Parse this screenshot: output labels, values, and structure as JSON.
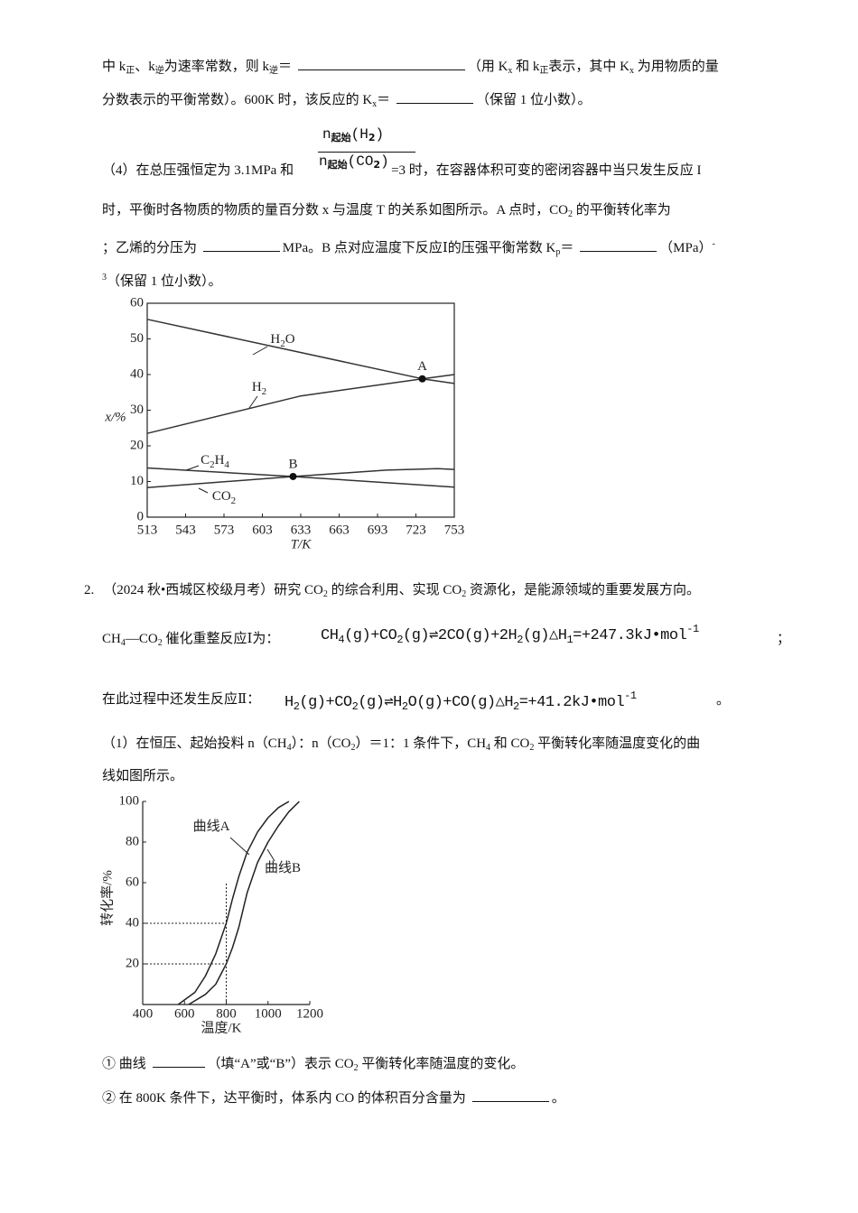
{
  "text_lines": [
    [
      "中 k",
      "正",
      "、k",
      "逆",
      "为速率常数，则 k",
      "逆",
      "＝ ",
      "（用 K",
      "x",
      " 和 k",
      "正",
      "表示，其中 K",
      "x",
      " 为用物质的量"
    ],
    [
      "分数表示的平衡常数）。600K 时，该反应的 K",
      "x",
      "＝ ",
      "（保留 1 位小数）。"
    ],
    [
      "（4）在总压强恒定为 3.1MPa 和",
      "=3 时，在容器体积可变的密闭容器中当只发生反应 I"
    ],
    [
      "时，平衡时各物质的物质的量百分数 x 与温度 T 的关系如图所示。A 点时，CO",
      "2",
      " 的平衡转化率为"
    ],
    [
      "；乙烯的分压为 ",
      "MPa。B 点对应温度下反应Ⅰ的压强平衡常数 K",
      "p",
      "＝ ",
      "（MPa）",
      "-"
    ],
    [
      "3",
      "（保留 1 位小数）。"
    ],
    [
      "2.",
      "（2024 秋•西城区校级月考）研究 CO",
      "2",
      " 的综合利用、实现 CO",
      "2",
      " 资源化，是能源领域的重要发展方向。"
    ],
    [
      "CH",
      "4",
      "—CO",
      "2",
      " 催化重整反应Ⅰ为："
    ],
    [
      "在此过程中还发生反应Ⅱ："
    ],
    [
      "（1）在恒压、起始投料 n（CH",
      "4",
      "）：n（CO",
      "2",
      "）＝1：1 条件下，CH",
      "4",
      " 和 CO",
      "2",
      " 平衡转化率随温度变化的曲"
    ],
    [
      "线如图所示。"
    ],
    [
      "① 曲线 ",
      "（填“A”或“B”）表示 CO",
      "2",
      " 平衡转化率随温度的变化。"
    ],
    [
      "② 在 800K 条件下，达平衡时，体系内 CO 的体积百分含量为 ",
      "。"
    ]
  ],
  "fraction": {
    "numerator": [
      "n",
      "起始",
      "(H",
      "2",
      ")"
    ],
    "denominator": [
      "n",
      "起始",
      "(CO",
      "2",
      ")"
    ]
  },
  "equations": [
    [
      "CH",
      "4",
      "(g)+CO",
      "2",
      "(g)⇌2CO(g)+2H",
      "2",
      "(g)△H",
      "1",
      "=+247.3kJ•mol",
      "-1"
    ],
    [
      "H",
      "2",
      "(g)+CO",
      "2",
      "(g)⇌H",
      "2",
      "O(g)+CO(g)△H",
      "2",
      "=+41.2kJ•mol",
      "-1"
    ]
  ],
  "punctuation": [
    "；",
    "。"
  ],
  "figure1": {
    "type": "line",
    "xlabel": "T/K",
    "ylabel": "x/%",
    "xlim": [
      513,
      753
    ],
    "xticks": [
      513,
      543,
      573,
      603,
      633,
      663,
      693,
      723,
      753
    ],
    "ylim": [
      0,
      60
    ],
    "yticks": [
      0,
      10,
      20,
      30,
      40,
      50,
      60
    ],
    "series": [
      {
        "name": "H2O",
        "color": "#333333",
        "x": [
          513,
          728,
          753
        ],
        "values": [
          55.5,
          38.8,
          37.5
        ]
      },
      {
        "name": "H2",
        "color": "#333333",
        "x": [
          513,
          633,
          728,
          753
        ],
        "values": [
          23.5,
          34,
          38.8,
          40
        ]
      },
      {
        "name": "C2H4",
        "color": "#333333",
        "x": [
          513,
          627,
          753
        ],
        "values": [
          13.8,
          11.4,
          8.4
        ]
      },
      {
        "name": "CO2",
        "color": "#333333",
        "x": [
          513,
          627,
          700,
          740,
          753
        ],
        "values": [
          8.3,
          11.4,
          13.2,
          13.6,
          13.4
        ]
      }
    ],
    "points": [
      {
        "label": "A",
        "x": 728,
        "y": 38.8
      },
      {
        "label": "B",
        "x": 627,
        "y": 11.4
      }
    ]
  },
  "figure2": {
    "type": "line",
    "xlabel": "温度/K",
    "ylabel": "转化率/%",
    "xlim": [
      400,
      1200
    ],
    "xticks": [
      400,
      600,
      800,
      1000,
      1200
    ],
    "ylim": [
      0,
      100
    ],
    "yticks": [
      20,
      40,
      60,
      80,
      100
    ],
    "series": [
      {
        "name": "曲线A",
        "color": "#222222",
        "x": [
          570,
          650,
          700,
          750,
          800,
          830,
          860,
          900,
          950,
          1000,
          1050,
          1100
        ],
        "values": [
          0,
          6,
          14,
          25,
          40,
          52,
          63,
          75,
          85,
          92,
          97,
          100
        ]
      },
      {
        "name": "曲线B",
        "color": "#222222",
        "x": [
          620,
          700,
          750,
          800,
          830,
          860,
          900,
          950,
          1000,
          1050,
          1100,
          1150
        ],
        "values": [
          0,
          5,
          10,
          20,
          28,
          38,
          55,
          70,
          80,
          88,
          95,
          100
        ]
      }
    ],
    "reference": {
      "x": 800,
      "y": [
        40,
        20
      ]
    }
  }
}
